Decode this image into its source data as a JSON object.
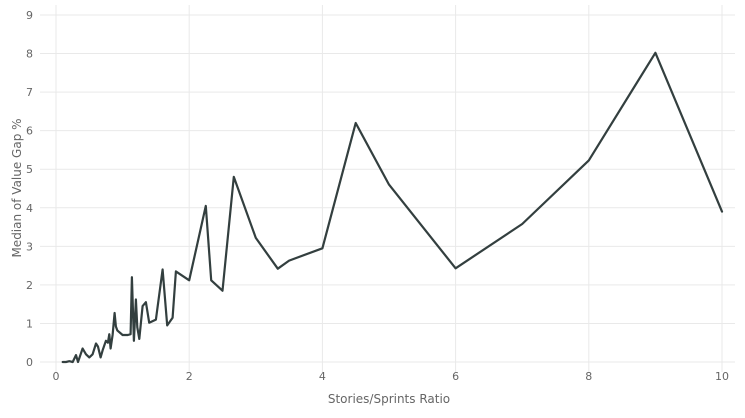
{
  "chart_data": {
    "type": "line",
    "xlabel": "Stories/Sprints Ratio",
    "ylabel": "Median of Value Gap %",
    "xlim": [
      0,
      10
    ],
    "ylim": [
      0,
      9
    ],
    "x_ticks": [
      0,
      2,
      4,
      6,
      8,
      10
    ],
    "y_ticks": [
      0,
      1,
      2,
      3,
      4,
      5,
      6,
      7,
      8,
      9
    ],
    "grid": true,
    "legend": "none",
    "colors": {
      "line": "#333f3f",
      "grid": "#e9e9e9",
      "tick_text": "#666666"
    },
    "series": [
      {
        "x": [
          0.1,
          0.15,
          0.2,
          0.25,
          0.3,
          0.33,
          0.36,
          0.4,
          0.45,
          0.5,
          0.55,
          0.6,
          0.63,
          0.67,
          0.7,
          0.75,
          0.78,
          0.8,
          0.82,
          0.85,
          0.88,
          0.9,
          0.92,
          1.0,
          1.08,
          1.12,
          1.14,
          1.17,
          1.2,
          1.22,
          1.25,
          1.3,
          1.35,
          1.4,
          1.5,
          1.6,
          1.67,
          1.75,
          1.8,
          2.0,
          2.25,
          2.33,
          2.5,
          2.67,
          3.0,
          3.33,
          3.5,
          4.0,
          4.5,
          5.0,
          6.0,
          7.0,
          8.0,
          9.0,
          10.0
        ],
        "values": [
          0.0,
          0.0,
          0.02,
          0.0,
          0.18,
          0.0,
          0.15,
          0.35,
          0.2,
          0.12,
          0.2,
          0.48,
          0.4,
          0.12,
          0.3,
          0.55,
          0.5,
          0.72,
          0.35,
          0.7,
          1.27,
          0.92,
          0.82,
          0.7,
          0.7,
          0.72,
          2.2,
          0.55,
          1.62,
          0.9,
          0.6,
          1.45,
          1.55,
          1.02,
          1.1,
          2.4,
          0.95,
          1.15,
          2.35,
          2.12,
          4.05,
          2.12,
          1.85,
          4.8,
          3.22,
          2.42,
          2.63,
          2.95,
          6.2,
          4.6,
          2.43,
          3.58,
          5.23,
          8.02,
          3.9
        ]
      }
    ]
  }
}
